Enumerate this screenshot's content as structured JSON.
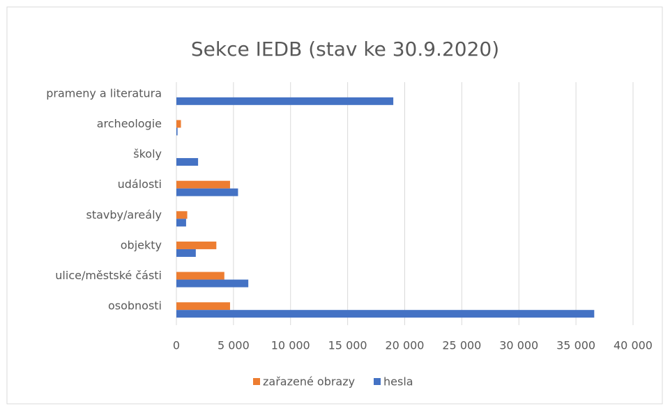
{
  "chart_data": {
    "type": "bar",
    "orientation": "horizontal",
    "title": "Sekce IEDB (stav ke 30.9.2020)",
    "categories": [
      "prameny a literatura",
      "archeologie",
      "školy",
      "události",
      "stavby/areály",
      "objekty",
      "ulice/městské části",
      "osobnosti"
    ],
    "series": [
      {
        "name": "zařazené obrazy",
        "color": "#ed7d31",
        "values": [
          0,
          400,
          0,
          4700,
          950,
          3500,
          4200,
          4700
        ]
      },
      {
        "name": "hesla",
        "color": "#4472c4",
        "values": [
          19000,
          100,
          1900,
          5400,
          850,
          1700,
          6300,
          36600
        ]
      }
    ],
    "xlim": [
      0,
      40000
    ],
    "xticks": [
      0,
      {
        "value": 5000,
        "label": "5 000"
      },
      {
        "value": 10000,
        "label": "10 000"
      },
      {
        "value": 15000,
        "label": "15 000"
      },
      {
        "value": 20000,
        "label": "20 000"
      },
      {
        "value": 25000,
        "label": "25 000"
      },
      {
        "value": 30000,
        "label": "30 000"
      },
      {
        "value": 35000,
        "label": "35 000"
      },
      {
        "value": 40000,
        "label": "40 000"
      }
    ],
    "grid": true,
    "legend": "bottom"
  }
}
